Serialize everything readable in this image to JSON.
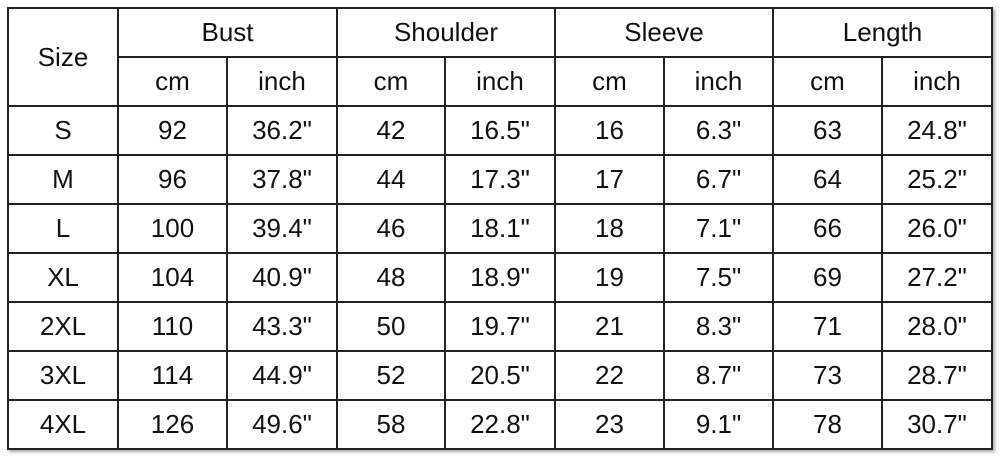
{
  "table": {
    "size_header": "Size",
    "groups": [
      "Bust",
      "Shoulder",
      "Sleeve",
      "Length"
    ],
    "units": [
      "cm",
      "inch"
    ],
    "rows": [
      [
        "S",
        "92",
        "36.2\"",
        "42",
        "16.5\"",
        "16",
        "6.3\"",
        "63",
        "24.8\""
      ],
      [
        "M",
        "96",
        "37.8\"",
        "44",
        "17.3\"",
        "17",
        "6.7\"",
        "64",
        "25.2\""
      ],
      [
        "L",
        "100",
        "39.4\"",
        "46",
        "18.1\"",
        "18",
        "7.1\"",
        "66",
        "26.0\""
      ],
      [
        "XL",
        "104",
        "40.9\"",
        "48",
        "18.9\"",
        "19",
        "7.5\"",
        "69",
        "27.2\""
      ],
      [
        "2XL",
        "110",
        "43.3\"",
        "50",
        "19.7\"",
        "21",
        "8.3\"",
        "71",
        "28.0\""
      ],
      [
        "3XL",
        "114",
        "44.9\"",
        "52",
        "20.5\"",
        "22",
        "8.7\"",
        "73",
        "28.7\""
      ],
      [
        "4XL",
        "126",
        "49.6\"",
        "58",
        "22.8\"",
        "23",
        "9.1\"",
        "78",
        "30.7\""
      ]
    ]
  }
}
